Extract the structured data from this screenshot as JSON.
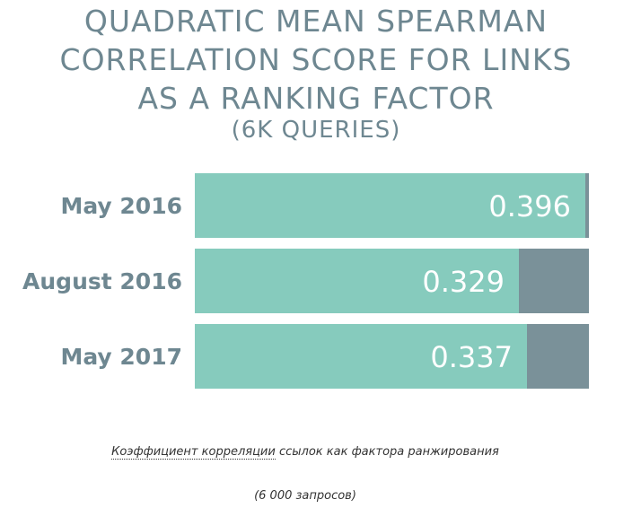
{
  "chart_data": {
    "type": "bar",
    "orientation": "horizontal",
    "stacked": true,
    "title_lines": [
      "QUADRATIC MEAN SPEARMAN",
      "CORRELATION SCORE FOR LINKS",
      "AS A RANKING FACTOR"
    ],
    "subtitle": "(6K QUERIES)",
    "categories": [
      "May 2016",
      "August 2016",
      "May 2017"
    ],
    "values": [
      0.396,
      0.329,
      0.337
    ],
    "value_labels": [
      "0.396",
      "0.329",
      "0.337"
    ],
    "xlim": [
      0,
      0.4
    ],
    "grid": false,
    "colors": {
      "value": "#86cbbd",
      "remainder": "#7a9199",
      "text": "#6e8791"
    }
  },
  "caption": {
    "link_text": "Коэффициент корреляции",
    "rest_text": " ссылок как фактора ранжирования",
    "line2": "(6 000 запросов)"
  }
}
